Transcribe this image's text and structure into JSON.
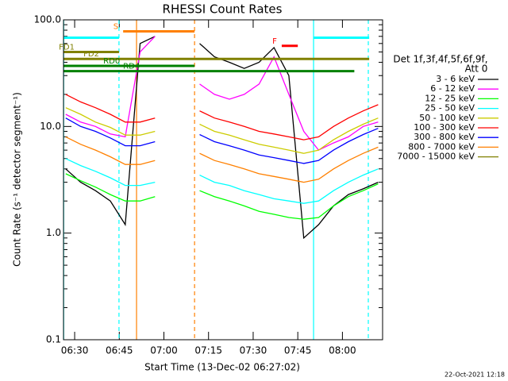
{
  "chart_data": {
    "type": "line",
    "title": "RHESSI Count Rates",
    "x_label": "Start Time (13-Dec-02 06:27:02)",
    "y_label": "Count Rate (s⁻¹ detector segment⁻¹)",
    "log_y": true,
    "xlim": [
      386.25,
      493.5
    ],
    "xticks": [
      {
        "value": 390,
        "label": "06:30"
      },
      {
        "value": 405,
        "label": "06:45"
      },
      {
        "value": 420,
        "label": "07:00"
      },
      {
        "value": 435,
        "label": "07:15"
      },
      {
        "value": 450,
        "label": "07:30"
      },
      {
        "value": 465,
        "label": "07:45"
      },
      {
        "value": 480,
        "label": "08:00"
      }
    ],
    "ylim": [
      0.1,
      100
    ],
    "yticks": [
      {
        "value": 0.1,
        "label": "0.1"
      },
      {
        "value": 1,
        "label": "1.0"
      },
      {
        "value": 10,
        "label": "10.0"
      },
      {
        "value": 100,
        "label": "100.0"
      }
    ],
    "legend_title": [
      "Det 1f,3f,4f,5f,6f,9f,",
      "Att 0"
    ],
    "x": [
      387,
      392,
      397,
      402,
      407,
      412,
      417,
      422,
      427,
      432,
      437,
      442,
      447,
      452,
      457,
      462,
      467,
      472,
      477,
      482,
      487,
      492
    ],
    "series": [
      {
        "name": "3 - 6 keV",
        "color": "#000000",
        "values": [
          4,
          3,
          2.5,
          2,
          1.2,
          60,
          70,
          null,
          null,
          60,
          45,
          40,
          35,
          40,
          55,
          30,
          0.9,
          1.2,
          1.8,
          2.3,
          2.6,
          3
        ]
      },
      {
        "name": "6 - 12 keV",
        "color": "#ff00ff",
        "values": [
          13,
          11,
          10,
          8.5,
          8,
          50,
          70,
          null,
          null,
          25,
          20,
          18,
          20,
          25,
          45,
          20,
          9,
          6,
          7,
          8,
          10,
          11
        ]
      },
      {
        "name": "12 - 25 keV",
        "color": "#00ff00",
        "values": [
          3.6,
          3.1,
          2.7,
          2.3,
          2,
          2,
          2.2,
          null,
          null,
          2.5,
          2.2,
          2,
          1.8,
          1.6,
          1.5,
          1.4,
          1.35,
          1.4,
          1.8,
          2.2,
          2.5,
          2.9
        ]
      },
      {
        "name": "25 - 50 keV",
        "color": "#00ffff",
        "values": [
          5,
          4.3,
          3.8,
          3.3,
          2.8,
          2.8,
          3,
          null,
          null,
          3.5,
          3,
          2.8,
          2.5,
          2.3,
          2.1,
          2,
          1.9,
          2,
          2.5,
          3,
          3.5,
          4
        ]
      },
      {
        "name": "50 - 100 keV",
        "color": "#cccc00",
        "values": [
          15,
          13,
          11,
          9.8,
          8.3,
          8.3,
          9,
          null,
          null,
          10.5,
          9,
          8.3,
          7.5,
          6.8,
          6.4,
          6,
          5.6,
          6,
          7.5,
          9,
          10.5,
          12
        ]
      },
      {
        "name": "100 - 300 keV",
        "color": "#ff0000",
        "values": [
          20,
          17,
          15,
          13,
          11,
          11,
          12,
          null,
          null,
          14,
          12,
          11,
          10,
          9,
          8.5,
          8,
          7.5,
          8,
          10,
          12,
          14,
          16
        ]
      },
      {
        "name": "300 - 800 keV",
        "color": "#0000ff",
        "values": [
          12,
          10,
          9,
          7.8,
          6.6,
          6.6,
          7.2,
          null,
          null,
          8.4,
          7.2,
          6.6,
          6,
          5.4,
          5.1,
          4.8,
          4.5,
          4.8,
          6,
          7.2,
          8.4,
          9.6
        ]
      },
      {
        "name": "800 - 7000 keV",
        "color": "#ff8000",
        "values": [
          8,
          6.8,
          6,
          5.2,
          4.4,
          4.4,
          4.8,
          null,
          null,
          5.6,
          4.8,
          4.4,
          4,
          3.6,
          3.4,
          3.2,
          3,
          3.2,
          4,
          4.8,
          5.6,
          6.4
        ]
      },
      {
        "name": "7000 - 15000 keV",
        "color": "#808000",
        "values": [
          null,
          null,
          null,
          null,
          null,
          null,
          null,
          null,
          null,
          null,
          null,
          null,
          null,
          null,
          null,
          null,
          null,
          null,
          null,
          null,
          null,
          null
        ]
      }
    ],
    "vlines": [
      {
        "x": 386.3,
        "color": "#00ffff",
        "dashed": false
      },
      {
        "x": 404.9,
        "color": "#00ffff",
        "dashed": true
      },
      {
        "x": 410.8,
        "color": "#ff8000",
        "dashed": false
      },
      {
        "x": 430.3,
        "color": "#ff8000",
        "dashed": true
      },
      {
        "x": 470.3,
        "color": "#00ffff",
        "dashed": false
      },
      {
        "x": 488.7,
        "color": "#00ffff",
        "dashed": true
      }
    ],
    "bars": [
      {
        "x": [
          386.3,
          404.9
        ],
        "y": 68,
        "color": "#00ffff"
      },
      {
        "x": [
          470.3,
          489
        ],
        "y": 68,
        "color": "#00ffff"
      },
      {
        "x": [
          406.3,
          430.3
        ],
        "y": 78,
        "color": "#ff8000",
        "label": "S"
      },
      {
        "x": [
          459.6,
          465
        ],
        "y": 57,
        "color": "#ff0000",
        "label": "F"
      },
      {
        "x": [
          386.3,
          404.9
        ],
        "y": 50,
        "color": "#808000",
        "label": "FD1"
      },
      {
        "x": [
          386.3,
          489
        ],
        "y": 43,
        "color": "#808000",
        "label": "FD2"
      },
      {
        "x": [
          386.3,
          430.3
        ],
        "y": 37,
        "color": "#008000",
        "label": "RD0"
      },
      {
        "x": [
          386.3,
          484
        ],
        "y": 33,
        "color": "#008000",
        "label": "RD4"
      }
    ],
    "footer": "22-Oct-2021 12:18"
  }
}
